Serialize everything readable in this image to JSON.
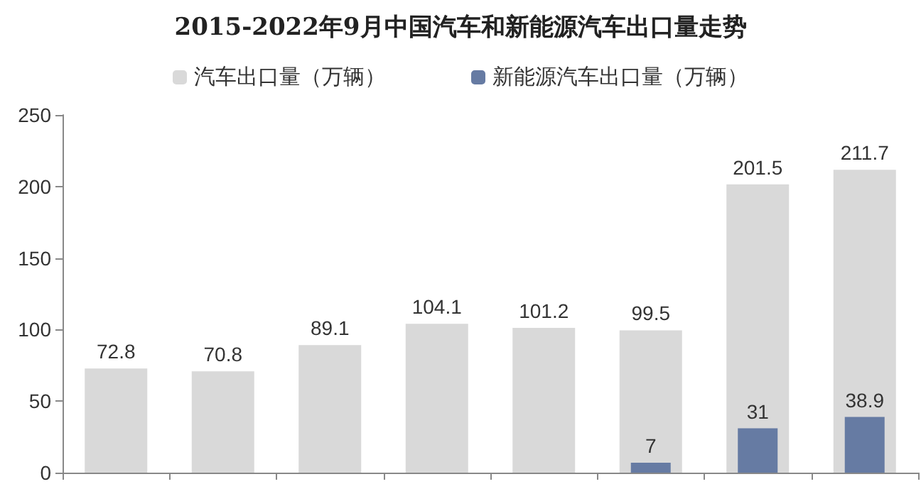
{
  "chart_data": {
    "type": "bar",
    "title": "2015-2022年9月中国汽车和新能源汽车出口量走势",
    "categories": [
      null,
      null,
      null,
      null,
      null,
      null,
      null,
      null
    ],
    "series": [
      {
        "name": "汽车出口量（万辆）",
        "color": "#d9d9d9",
        "values": [
          72.8,
          70.8,
          89.1,
          104.1,
          101.2,
          99.5,
          201.5,
          211.7
        ]
      },
      {
        "name": "新能源汽车出口量（万辆）",
        "color": "#667ba3",
        "values": [
          null,
          null,
          null,
          null,
          null,
          7,
          31,
          38.9
        ]
      }
    ],
    "ylim": [
      0,
      250
    ],
    "yticks": [
      0,
      50,
      100,
      150,
      200,
      250
    ],
    "grid": false,
    "legend": "top",
    "data_labels": true
  }
}
